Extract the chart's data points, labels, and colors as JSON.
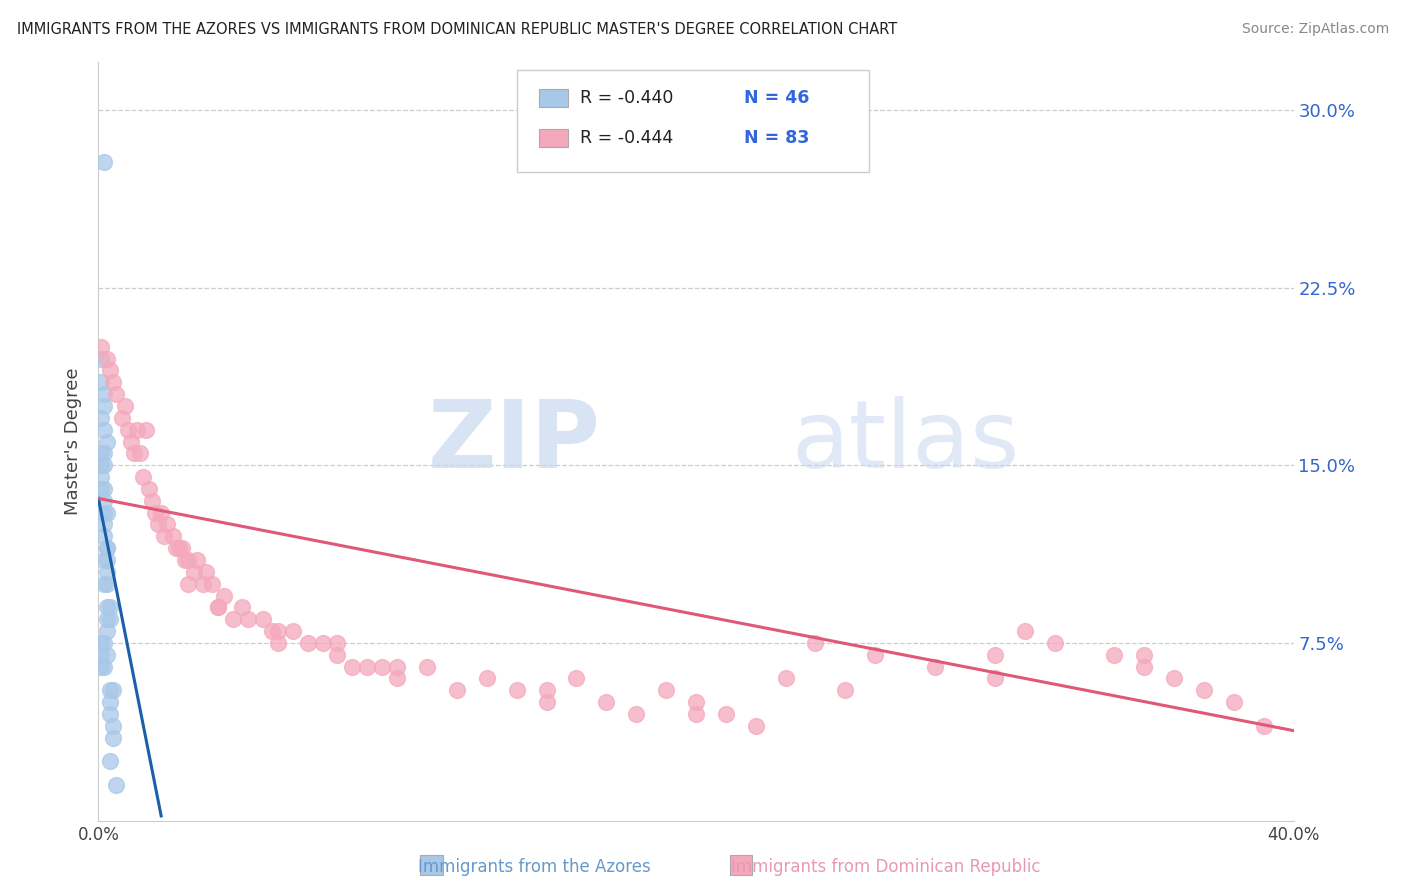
{
  "title": "IMMIGRANTS FROM THE AZORES VS IMMIGRANTS FROM DOMINICAN REPUBLIC MASTER'S DEGREE CORRELATION CHART",
  "source": "Source: ZipAtlas.com",
  "ylabel": "Master's Degree",
  "xlim": [
    0.0,
    0.4
  ],
  "ylim": [
    0.0,
    0.32
  ],
  "ytick_positions": [
    0.075,
    0.15,
    0.225,
    0.3
  ],
  "ytick_labels": [
    "7.5%",
    "15.0%",
    "22.5%",
    "30.0%"
  ],
  "xtick_positions": [
    0.0,
    0.1,
    0.2,
    0.3,
    0.4
  ],
  "xtick_labels": [
    "0.0%",
    "",
    "",
    "",
    "40.0%"
  ],
  "legend_r1": "R = -0.440",
  "legend_n1": "N = 46",
  "legend_r2": "R = -0.444",
  "legend_n2": "N = 83",
  "color_azores": "#a8c8e8",
  "color_dr": "#f4a8bc",
  "color_line_azores": "#1a5fa8",
  "color_line_dr": "#e05878",
  "watermark_zip": "ZIP",
  "watermark_atlas": "atlas",
  "label_azores": "Immigrants from the Azores",
  "label_dr": "Immigrants from Dominican Republic",
  "azores_x": [
    0.002,
    0.001,
    0.001,
    0.002,
    0.002,
    0.001,
    0.002,
    0.003,
    0.002,
    0.001,
    0.001,
    0.002,
    0.001,
    0.002,
    0.001,
    0.002,
    0.002,
    0.003,
    0.002,
    0.002,
    0.003,
    0.003,
    0.002,
    0.003,
    0.003,
    0.002,
    0.003,
    0.004,
    0.003,
    0.003,
    0.004,
    0.003,
    0.002,
    0.001,
    0.001,
    0.003,
    0.002,
    0.001,
    0.004,
    0.005,
    0.004,
    0.004,
    0.005,
    0.005,
    0.004,
    0.006
  ],
  "azores_y": [
    0.278,
    0.195,
    0.185,
    0.18,
    0.175,
    0.17,
    0.165,
    0.16,
    0.155,
    0.155,
    0.15,
    0.15,
    0.145,
    0.14,
    0.14,
    0.135,
    0.13,
    0.13,
    0.125,
    0.12,
    0.115,
    0.115,
    0.11,
    0.11,
    0.105,
    0.1,
    0.1,
    0.09,
    0.09,
    0.085,
    0.085,
    0.08,
    0.075,
    0.075,
    0.07,
    0.07,
    0.065,
    0.065,
    0.055,
    0.055,
    0.05,
    0.045,
    0.04,
    0.035,
    0.025,
    0.015
  ],
  "dr_x": [
    0.001,
    0.003,
    0.004,
    0.005,
    0.006,
    0.008,
    0.009,
    0.01,
    0.011,
    0.012,
    0.013,
    0.014,
    0.015,
    0.016,
    0.017,
    0.018,
    0.019,
    0.02,
    0.021,
    0.022,
    0.023,
    0.025,
    0.026,
    0.027,
    0.028,
    0.029,
    0.03,
    0.032,
    0.033,
    0.035,
    0.036,
    0.038,
    0.04,
    0.042,
    0.045,
    0.048,
    0.05,
    0.055,
    0.058,
    0.06,
    0.065,
    0.07,
    0.075,
    0.08,
    0.085,
    0.09,
    0.095,
    0.1,
    0.11,
    0.12,
    0.13,
    0.14,
    0.15,
    0.16,
    0.17,
    0.18,
    0.19,
    0.2,
    0.21,
    0.22,
    0.23,
    0.24,
    0.26,
    0.28,
    0.3,
    0.31,
    0.32,
    0.34,
    0.35,
    0.36,
    0.37,
    0.38,
    0.39,
    0.2,
    0.25,
    0.3,
    0.35,
    0.1,
    0.15,
    0.08,
    0.06,
    0.04,
    0.03
  ],
  "dr_y": [
    0.2,
    0.195,
    0.19,
    0.185,
    0.18,
    0.17,
    0.175,
    0.165,
    0.16,
    0.155,
    0.165,
    0.155,
    0.145,
    0.165,
    0.14,
    0.135,
    0.13,
    0.125,
    0.13,
    0.12,
    0.125,
    0.12,
    0.115,
    0.115,
    0.115,
    0.11,
    0.11,
    0.105,
    0.11,
    0.1,
    0.105,
    0.1,
    0.09,
    0.095,
    0.085,
    0.09,
    0.085,
    0.085,
    0.08,
    0.075,
    0.08,
    0.075,
    0.075,
    0.07,
    0.065,
    0.065,
    0.065,
    0.06,
    0.065,
    0.055,
    0.06,
    0.055,
    0.05,
    0.06,
    0.05,
    0.045,
    0.055,
    0.05,
    0.045,
    0.04,
    0.06,
    0.075,
    0.07,
    0.065,
    0.06,
    0.08,
    0.075,
    0.07,
    0.065,
    0.06,
    0.055,
    0.05,
    0.04,
    0.045,
    0.055,
    0.07,
    0.07,
    0.065,
    0.055,
    0.075,
    0.08,
    0.09,
    0.1
  ]
}
